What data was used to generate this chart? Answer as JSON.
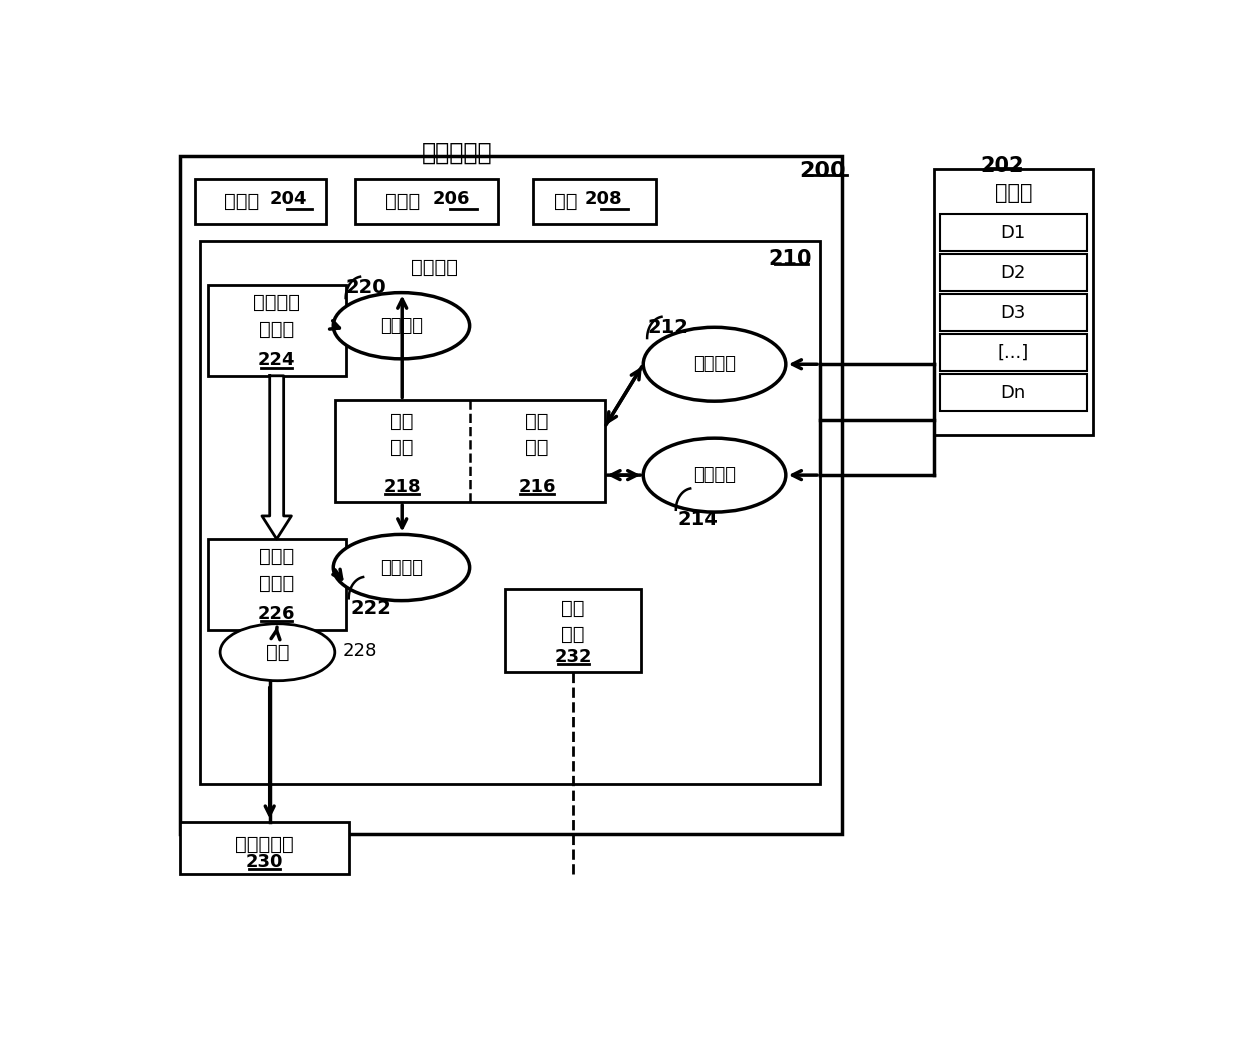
{
  "title_system": "计算机系统",
  "label_200": "200",
  "label_202": "202",
  "label_db": "数据库",
  "label_processor": "处理器",
  "label_204": "204",
  "label_storage_hw": "存储器",
  "label_206": "206",
  "label_interface": "接口",
  "label_208": "208",
  "label_storage_medium": "存储介质",
  "label_210": "210",
  "label_untrained": "未训练的\n分类器",
  "label_224": "224",
  "label_train_feature": "训练特征",
  "label_220": "220",
  "label_feature_extract": "特征\n提取",
  "label_218": "218",
  "label_doc_search": "文档\n检索",
  "label_216": "216",
  "label_train_doc": "训练文档",
  "label_212": "212",
  "label_test_doc": "测试文档",
  "label_214": "214",
  "label_trained": "训练的\n分类器",
  "label_226": "226",
  "label_test_feature": "测试特征",
  "label_222": "222",
  "label_predict": "预测",
  "label_228": "228",
  "label_control": "控制\n模块",
  "label_232": "232",
  "label_accuracy": "准确性评估",
  "label_230": "230",
  "label_D1": "D1",
  "label_D2": "D2",
  "label_D3": "D3",
  "label_Dn": "Dn",
  "label_dots": "[...]",
  "bg_color": "#ffffff"
}
